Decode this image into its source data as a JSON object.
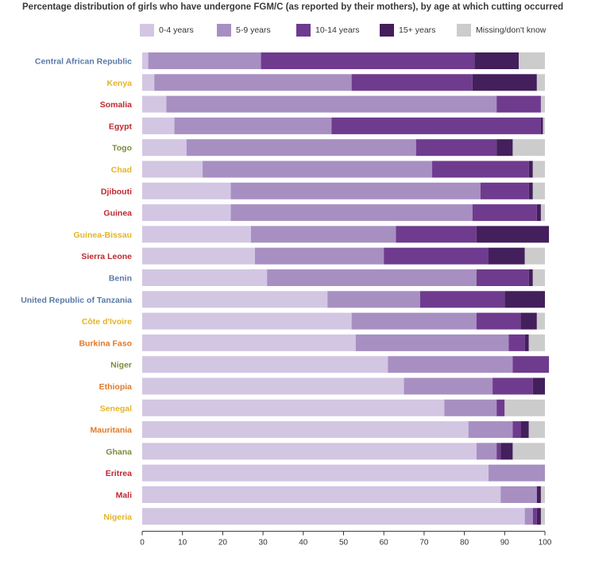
{
  "title": "Percentage distribution of girls who have undergone FGM/C (as reported by their mothers), by age at which cutting occurred",
  "colors": {
    "0-4": "#d3c6e3",
    "5-9": "#a88fc2",
    "10-14": "#6f3b8e",
    "15+": "#431f5c",
    "missing": "#cccccc",
    "label_blue": "#5a7aa8",
    "label_yellow": "#e3b428",
    "label_red": "#c0282f",
    "label_olive": "#7e8c3c",
    "label_orange": "#e07a2a"
  },
  "legend": [
    {
      "label": "0-4 years",
      "color": "#d3c6e3"
    },
    {
      "label": "5-9 years",
      "color": "#a88fc2"
    },
    {
      "label": "10-14 years",
      "color": "#6f3b8e"
    },
    {
      "label": "15+ years",
      "color": "#431f5c"
    },
    {
      "label": "Missing/don't know",
      "color": "#cccccc"
    }
  ],
  "chart_data": {
    "type": "bar",
    "orientation": "horizontal",
    "stacked": true,
    "title": "Percentage distribution of girls who have undergone FGM/C (as reported by their mothers), by age at which cutting occurred",
    "xlim": [
      0,
      100
    ],
    "xticks": [
      "0",
      "10",
      "20",
      "30",
      "40",
      "50",
      "60",
      "70",
      "80",
      "90",
      "100"
    ],
    "grid": false,
    "legend_position": "top",
    "categories": [
      "Central African Republic",
      "Kenya",
      "Somalia",
      "Egypt",
      "Togo",
      "Chad",
      "Djibouti",
      "Guinea",
      "Guinea-Bissau",
      "Sierra Leone",
      "Benin",
      "United Republic of Tanzania",
      "Côte d'Ivoire",
      "Burkina Faso",
      "Niger",
      "Ethiopia",
      "Senegal",
      "Mauritania",
      "Ghana",
      "Eritrea",
      "Mali",
      "Nigeria"
    ],
    "label_colors": [
      "#5a7aa8",
      "#e3b428",
      "#c0282f",
      "#c0282f",
      "#7e8c3c",
      "#e3b428",
      "#c0282f",
      "#c0282f",
      "#e3b428",
      "#c0282f",
      "#5a7aa8",
      "#5a7aa8",
      "#e3b428",
      "#e07a2a",
      "#7e8c3c",
      "#e07a2a",
      "#e3b428",
      "#e07a2a",
      "#7e8c3c",
      "#c0282f",
      "#c0282f",
      "#e3b428"
    ],
    "series": [
      {
        "name": "0-4 years",
        "color": "#d3c6e3",
        "values": [
          1.5,
          3,
          6,
          8,
          11,
          15,
          22,
          22,
          27,
          28,
          31,
          46,
          52,
          53,
          61,
          65,
          75,
          81,
          83,
          86,
          89,
          95
        ]
      },
      {
        "name": "5-9 years",
        "color": "#a88fc2",
        "values": [
          28,
          49,
          82,
          39,
          57,
          57,
          62,
          60,
          36,
          32,
          52,
          23,
          31,
          38,
          31,
          22,
          13,
          11,
          5,
          14,
          9,
          2
        ]
      },
      {
        "name": "10-14 years",
        "color": "#6f3b8e",
        "values": [
          53,
          30,
          11,
          52,
          20,
          24,
          12,
          16,
          20,
          26,
          13,
          21,
          11,
          4,
          9,
          10,
          2,
          2,
          1,
          0,
          0,
          1
        ]
      },
      {
        "name": "15+ years",
        "color": "#431f5c",
        "values": [
          11,
          16,
          0,
          0.5,
          4,
          1,
          1,
          1,
          18,
          9,
          1,
          10,
          4,
          1,
          0,
          3,
          0,
          2,
          3,
          0,
          1,
          1
        ]
      },
      {
        "name": "Missing/don't know",
        "color": "#cccccc",
        "values": [
          6.5,
          2,
          1,
          0.5,
          8,
          3,
          3,
          1,
          0,
          5,
          3,
          0,
          2,
          4,
          0,
          0,
          10,
          4,
          8,
          0,
          1,
          1
        ]
      }
    ]
  }
}
